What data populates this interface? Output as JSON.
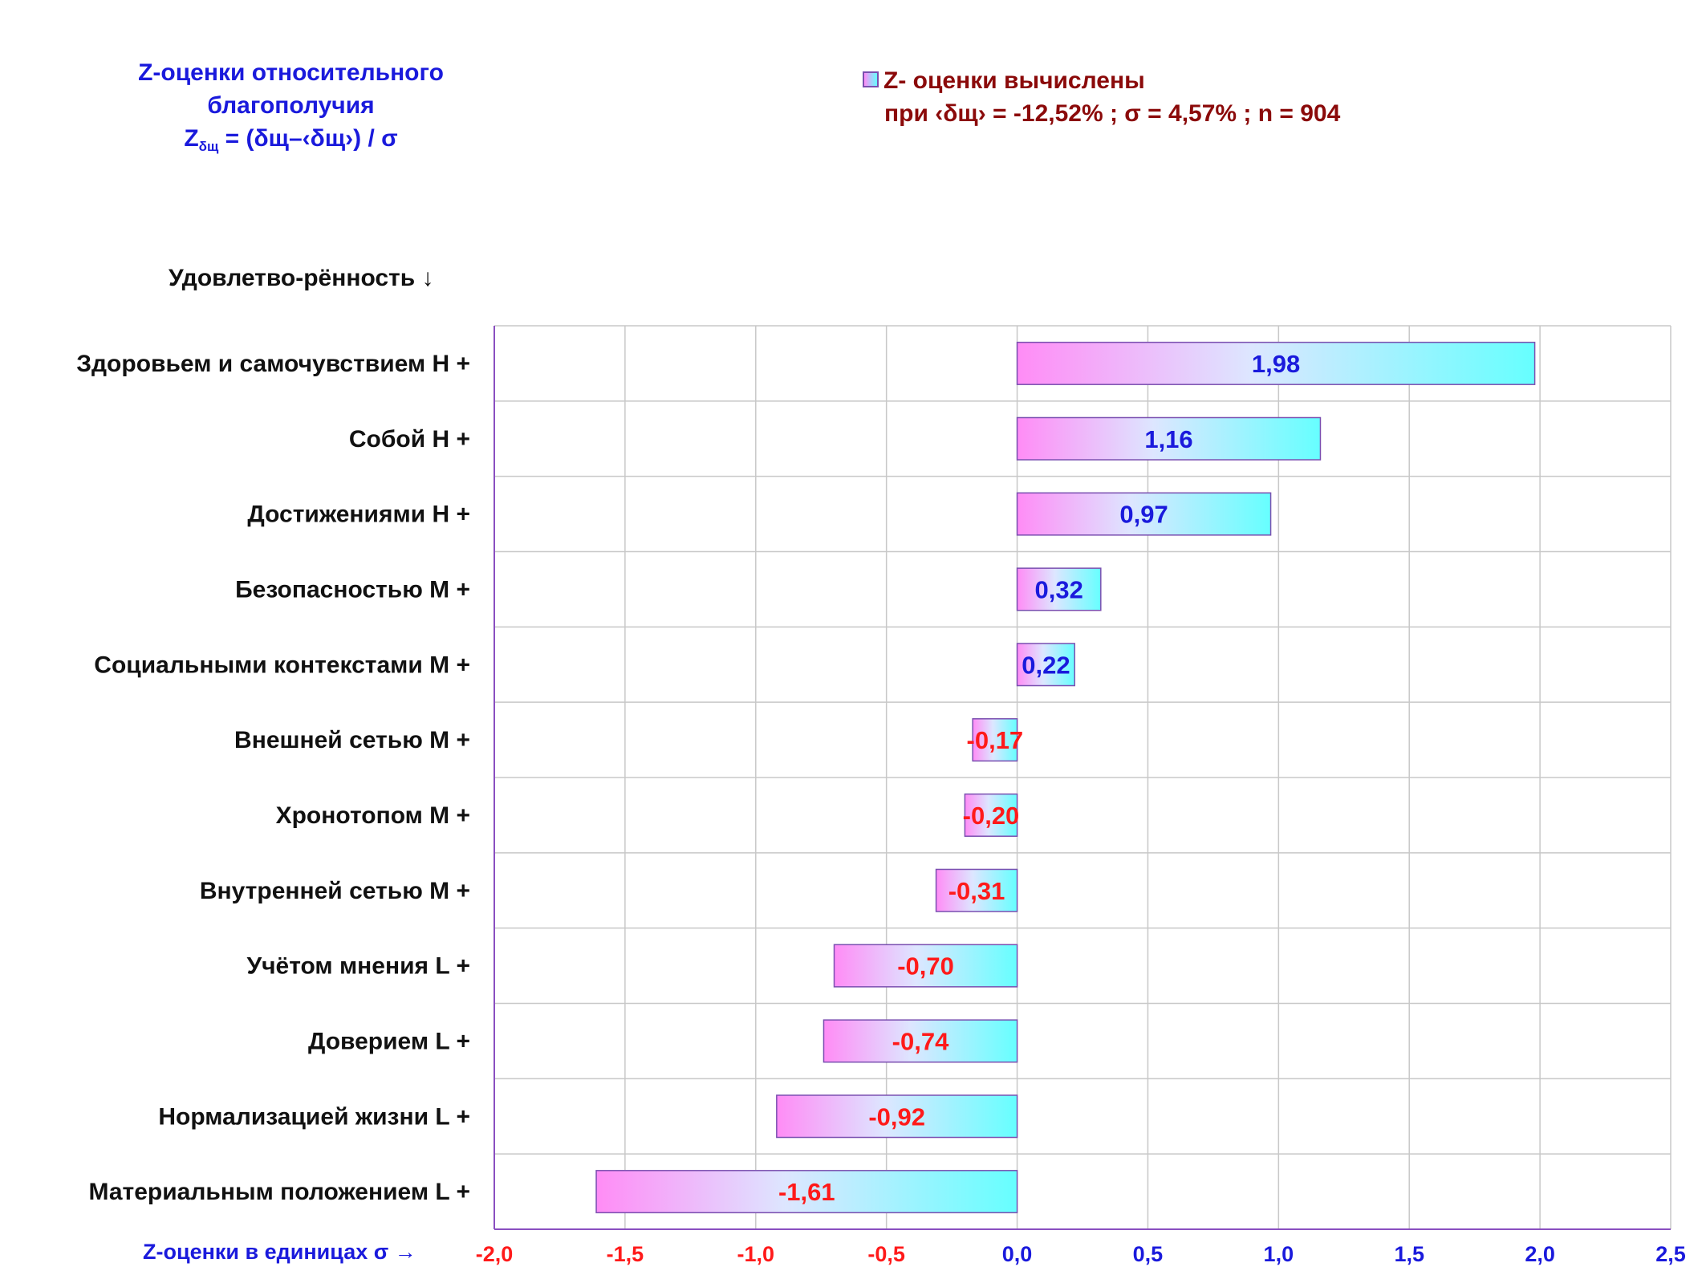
{
  "title": {
    "line1": "Z-оценки относительного",
    "line2": "благополучия",
    "formula_z": "Z",
    "formula_sub": "δщ",
    "formula_rest": " = (δщ–‹δщ›) / σ"
  },
  "legend": {
    "line1": "Z- оценки вычислены",
    "line2": "при ‹δщ› = -12,52% ; σ = 4,57% ; n = 904"
  },
  "y_header": "Удовлетво-рённость ↓",
  "x_axis_label": "Z-оценки в единицах σ →",
  "colors": {
    "positive_label": "#1a1adc",
    "negative_label": "#ff1a1a",
    "bar_left": "#ff8cf6",
    "bar_right": "#66ffff",
    "bar_border": "#7a4fb0",
    "grid": "#c8c8c8",
    "axis": "#8a4fc0"
  },
  "chart_data": {
    "type": "bar",
    "orientation": "horizontal",
    "categories": [
      "Здоровьем и самочувствием  H +",
      "Собой  H +",
      "Достижениями  H +",
      "Безопасностью  M +",
      "Социальными контекстами  M +",
      "Внешней сетью  M +",
      "Хронотопом  M +",
      "Внутренней сетью  M +",
      "Учётом мнения  L +",
      "Доверием  L +",
      "Нормализацией жизни  L +",
      "Материальным положением  L +"
    ],
    "values": [
      1.98,
      1.16,
      0.97,
      0.32,
      0.22,
      -0.17,
      -0.2,
      -0.31,
      -0.7,
      -0.74,
      -0.92,
      -1.61
    ],
    "value_labels": [
      "1,98",
      "1,16",
      "0,97",
      "0,32",
      "0,22",
      "-0,17",
      "-0,20",
      "-0,31",
      "-0,70",
      "-0,74",
      "-0,92",
      "-1,61"
    ],
    "xlim": [
      -2.0,
      2.5
    ],
    "x_ticks": [
      -2.0,
      -1.5,
      -1.0,
      -0.5,
      0.0,
      0.5,
      1.0,
      1.5,
      2.0,
      2.5
    ],
    "x_tick_labels": [
      "-2,0",
      "-1,5",
      "-1,0",
      "-0,5",
      "0,0",
      "0,5",
      "1,0",
      "1,5",
      "2,0",
      "2,5"
    ],
    "grid": true
  }
}
